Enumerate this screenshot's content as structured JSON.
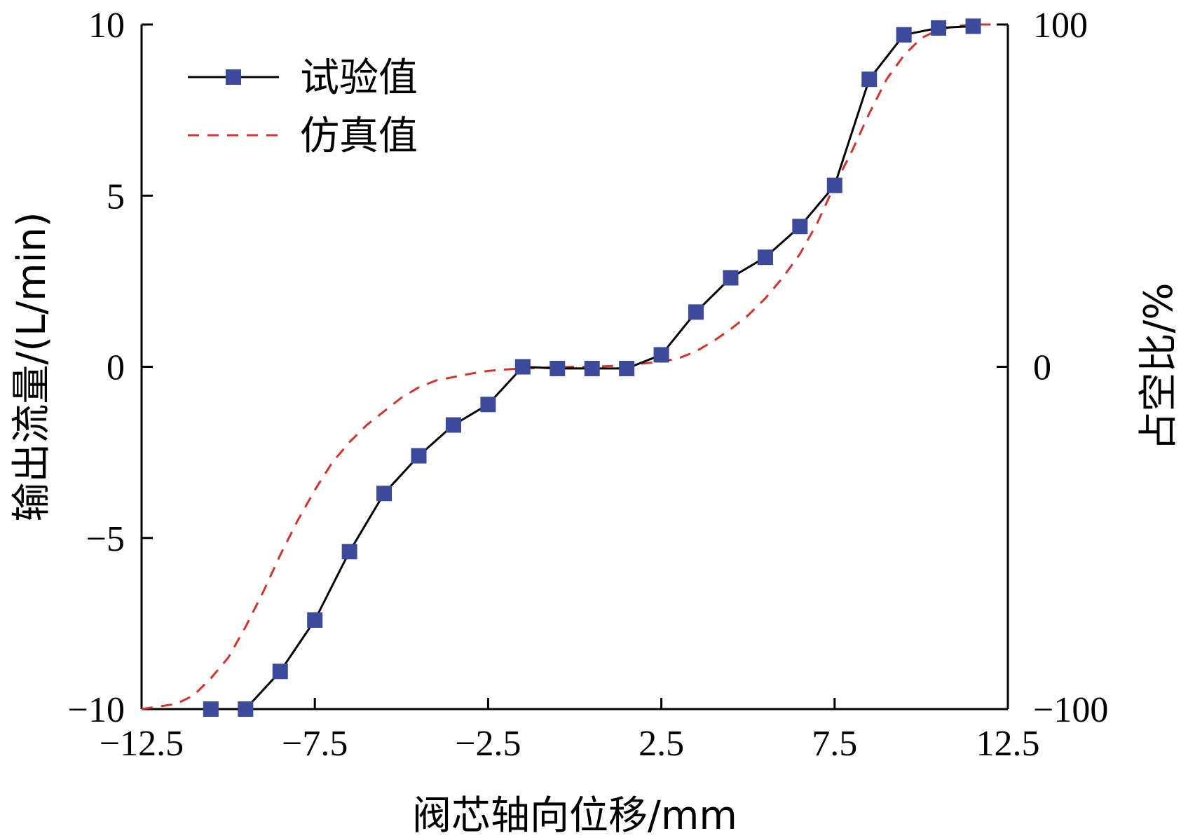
{
  "chart_data": {
    "type": "line",
    "title": "",
    "xlabel": "阀芯轴向位移/mm",
    "ylabel": "输出流量/(L/min)",
    "ylabel_right": "占空比/%",
    "xlim": [
      -12.5,
      12.5
    ],
    "ylim": [
      -10,
      10
    ],
    "ylim_right": [
      -100,
      100
    ],
    "x_ticks": [
      -12.5,
      -7.5,
      -2.5,
      2.5,
      7.5,
      12.5
    ],
    "x_tick_labels": [
      "−12.5",
      "−7.5",
      "−2.5",
      "2.5",
      "7.5",
      "12.5"
    ],
    "y_ticks": [
      -10,
      -5,
      0,
      5,
      10
    ],
    "y_tick_labels": [
      "−10",
      "−5",
      "0",
      "5",
      "10"
    ],
    "y_right_ticks": [
      -100,
      0,
      100
    ],
    "y_right_tick_labels": [
      "−100",
      "0",
      "100"
    ],
    "grid": false,
    "legend_position": "top-left",
    "series": [
      {
        "name": "试验值",
        "style": "solid-line-square-markers",
        "color": "#000000",
        "marker_color": "#3b4a9b",
        "x": [
          -10.5,
          -9.5,
          -8.5,
          -7.5,
          -6.5,
          -5.5,
          -4.5,
          -3.5,
          -2.5,
          -1.5,
          -0.5,
          0.5,
          1.5,
          2.5,
          3.5,
          4.5,
          5.5,
          6.5,
          7.5,
          8.5,
          9.5,
          10.5,
          11.5
        ],
        "y": [
          -10.0,
          -10.0,
          -8.9,
          -7.4,
          -5.4,
          -3.7,
          -2.6,
          -1.7,
          -1.1,
          0.0,
          -0.05,
          -0.05,
          -0.05,
          0.35,
          1.6,
          2.6,
          3.2,
          4.1,
          5.3,
          8.4,
          9.7,
          9.9,
          9.95
        ]
      },
      {
        "name": "仿真值",
        "style": "dashed-line",
        "color": "#d0342c",
        "x": [
          -12.5,
          -11.5,
          -11.0,
          -10.5,
          -10.0,
          -9.5,
          -9.0,
          -8.5,
          -8.0,
          -7.5,
          -7.0,
          -6.5,
          -6.0,
          -5.5,
          -5.0,
          -4.5,
          -4.0,
          -3.5,
          -3.0,
          -2.5,
          -2.0,
          -1.5,
          -1.0,
          -0.5,
          0.0,
          0.5,
          1.0,
          1.5,
          2.0,
          2.5,
          3.0,
          3.5,
          4.0,
          4.5,
          5.0,
          5.5,
          6.0,
          6.5,
          7.0,
          7.5,
          8.0,
          8.5,
          9.0,
          9.5,
          10.0,
          10.5,
          11.0,
          11.5,
          12.0
        ],
        "y": [
          -10.0,
          -9.85,
          -9.6,
          -9.1,
          -8.5,
          -7.6,
          -6.6,
          -5.5,
          -4.5,
          -3.6,
          -2.8,
          -2.2,
          -1.7,
          -1.3,
          -0.9,
          -0.6,
          -0.4,
          -0.3,
          -0.2,
          -0.12,
          -0.08,
          -0.05,
          -0.03,
          -0.01,
          0.0,
          0.0,
          0.02,
          0.05,
          0.1,
          0.15,
          0.25,
          0.45,
          0.75,
          1.1,
          1.5,
          2.0,
          2.6,
          3.3,
          4.2,
          5.3,
          6.3,
          7.4,
          8.4,
          9.1,
          9.6,
          9.85,
          9.95,
          10.0,
          10.0
        ]
      }
    ]
  }
}
